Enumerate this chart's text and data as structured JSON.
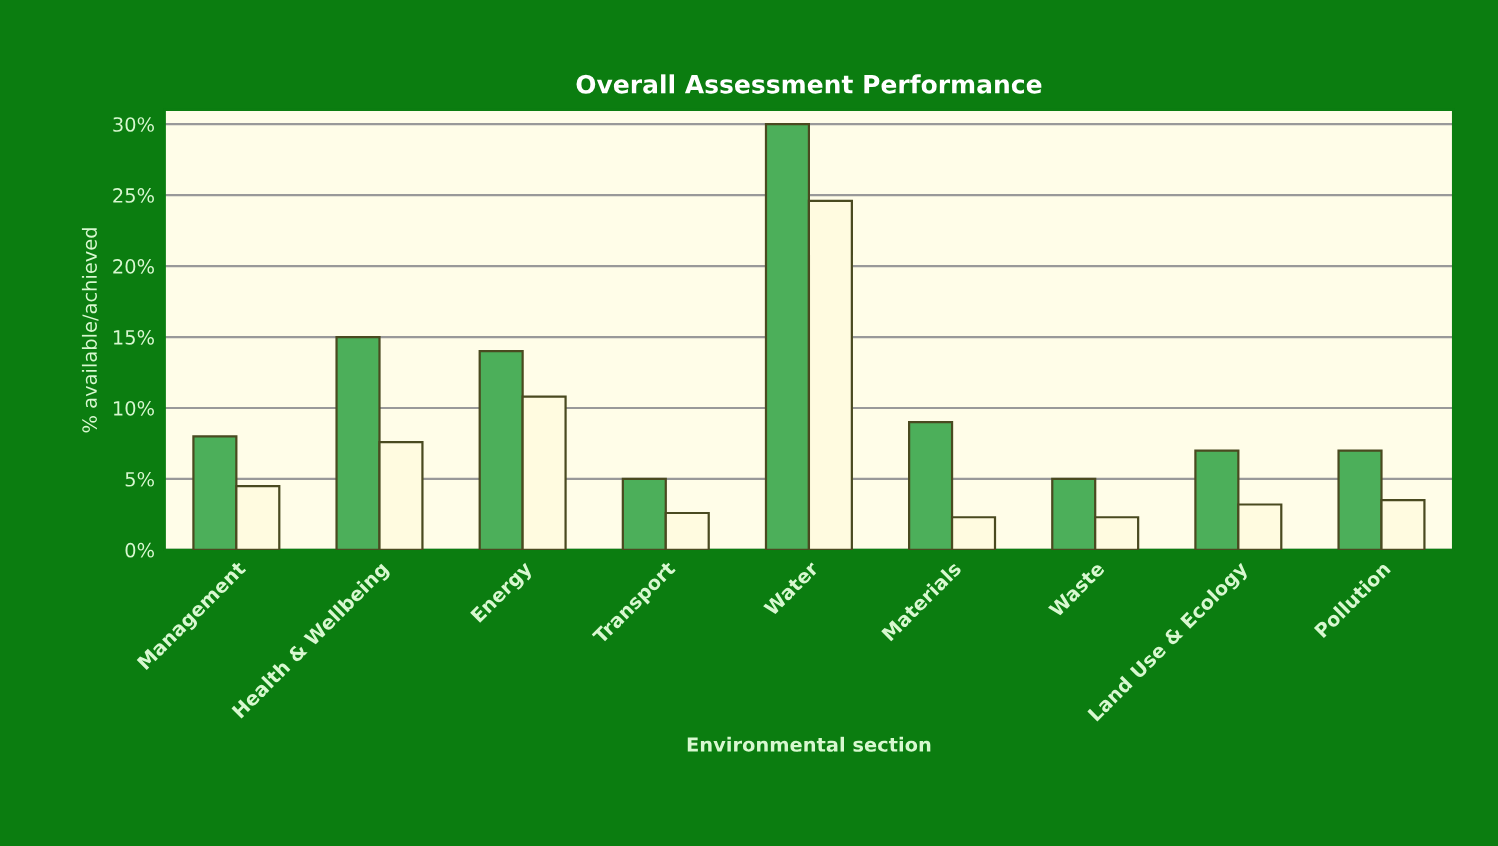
{
  "chart_data": {
    "type": "bar",
    "title": "Overall Assessment Performance",
    "xlabel": "Environmental section",
    "ylabel": "% available/achieved",
    "categories": [
      "Management",
      "Health & Wellbeing",
      "Energy",
      "Transport",
      "Water",
      "Materials",
      "Waste",
      "Land Use & Ecology",
      "Pollution"
    ],
    "series": [
      {
        "color": "#4caf5a",
        "values": [
          8,
          15,
          14,
          5,
          30,
          9,
          5,
          7,
          7
        ]
      },
      {
        "color": "#fffbe0",
        "values": [
          4.5,
          7.6,
          10.8,
          2.6,
          24.6,
          2.3,
          2.3,
          3.2,
          3.5
        ]
      }
    ],
    "ylim": [
      0,
      31
    ],
    "yticks": [
      {
        "value": 0,
        "label": "0%"
      },
      {
        "value": 5,
        "label": "5%"
      },
      {
        "value": 10,
        "label": "10%"
      },
      {
        "value": 15,
        "label": "15%"
      },
      {
        "value": 20,
        "label": "20%"
      },
      {
        "value": 25,
        "label": "25%"
      },
      {
        "value": 30,
        "label": "30%"
      }
    ],
    "grid": "y",
    "legend": false
  }
}
